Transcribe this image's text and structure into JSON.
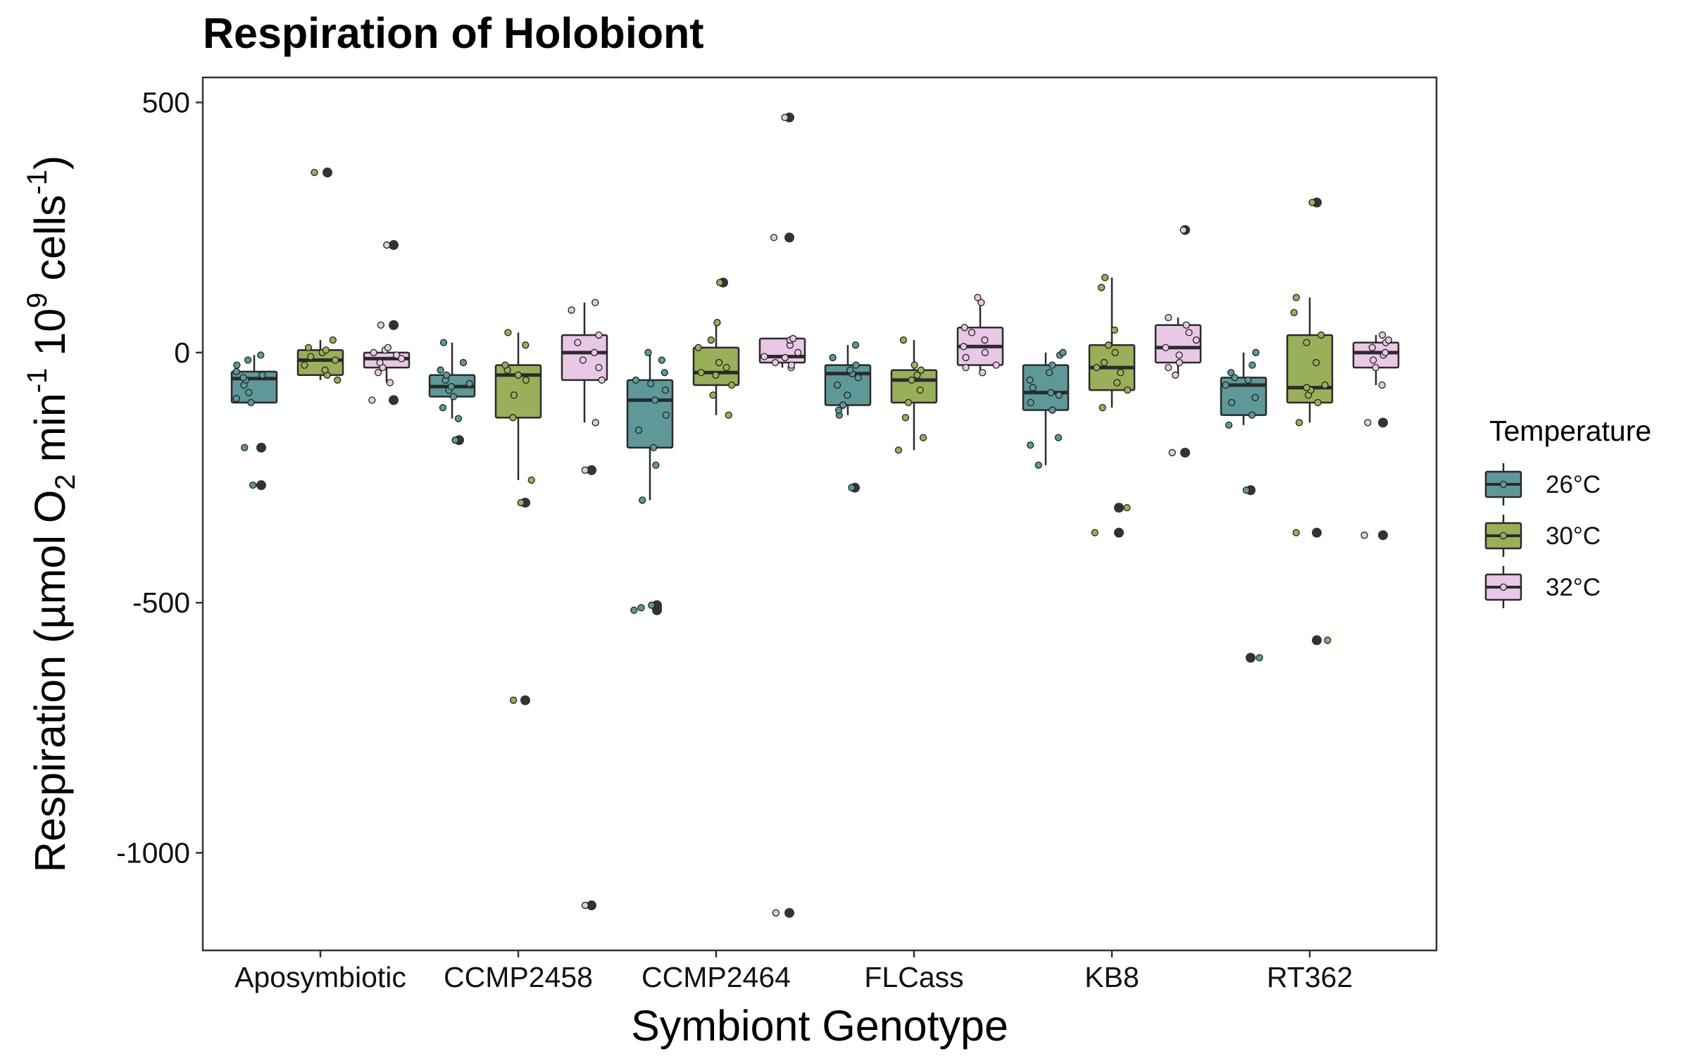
{
  "chart_data": {
    "type": "boxplot",
    "title": "Respiration of Holobiont",
    "xlabel": "Symbiont Genotype",
    "ylabel": {
      "prefix": "Respiration (µmol O",
      "sub": "2",
      "mid1": " min",
      "sup1": "-1",
      "mid2": " 10",
      "sup2": "9",
      "mid3": " cells",
      "sup3": "-1",
      "suffix": ")"
    },
    "ylim": [
      -1195,
      550
    ],
    "yticks": [
      500,
      0,
      -500,
      -1000
    ],
    "ytick_labels": [
      "500",
      "0",
      "-500",
      "-1000"
    ],
    "categories": [
      "Aposymbiotic",
      "CCMP2458",
      "CCMP2464",
      "FLCass",
      "KB8",
      "RT362"
    ],
    "legend": {
      "title": "Temperature",
      "placement": "right",
      "entries": [
        "26°C",
        "30°C",
        "32°C"
      ]
    },
    "colors": {
      "26°C": "#5f9898",
      "30°C": "#9aaf5a",
      "32°C": "#e9c8e6",
      "box_edge": "#2b2b2b",
      "outlier": "#333333"
    },
    "series": [
      {
        "name": "26°C",
        "boxes": [
          {
            "q1": -100,
            "median": -52,
            "q3": -38,
            "whisker_low": -100,
            "whisker_high": -5,
            "outliers": [
              -190,
              -265
            ],
            "points": [
              -100,
              -92,
              -80,
              -65,
              -55,
              -50,
              -45,
              -38,
              -25,
              -15,
              -5,
              -190,
              -265
            ]
          },
          {
            "q1": -88,
            "median": -68,
            "q3": -45,
            "whisker_low": -132,
            "whisker_high": 20,
            "outliers": [
              -175
            ],
            "points": [
              -132,
              -110,
              -88,
              -75,
              -68,
              -62,
              -55,
              -45,
              -35,
              -20,
              20,
              -175
            ]
          },
          {
            "q1": -190,
            "median": -95,
            "q3": -55,
            "whisker_low": -295,
            "whisker_high": 0,
            "outliers": [
              -505,
              -510,
              -515
            ],
            "points": [
              -295,
              -225,
              -190,
              -155,
              -125,
              -95,
              -75,
              -62,
              -55,
              -40,
              -15,
              0,
              -505,
              -510,
              -515
            ]
          },
          {
            "q1": -105,
            "median": -42,
            "q3": -25,
            "whisker_low": -125,
            "whisker_high": 15,
            "outliers": [
              -270
            ],
            "points": [
              -125,
              -115,
              -105,
              -85,
              -65,
              -50,
              -42,
              -35,
              -25,
              -10,
              15,
              -270
            ]
          },
          {
            "q1": -115,
            "median": -80,
            "q3": -25,
            "whisker_low": -225,
            "whisker_high": 0,
            "outliers": [],
            "points": [
              -225,
              -185,
              -170,
              -115,
              -100,
              -85,
              -80,
              -70,
              -55,
              -40,
              -25,
              -5,
              0
            ]
          },
          {
            "q1": -125,
            "median": -65,
            "q3": -50,
            "whisker_low": -145,
            "whisker_high": 0,
            "outliers": [
              -275,
              -610
            ],
            "points": [
              -145,
              -125,
              -100,
              -90,
              -65,
              -55,
              -50,
              -40,
              -25,
              0,
              -275,
              -610
            ]
          }
        ]
      },
      {
        "name": "30°C",
        "boxes": [
          {
            "q1": -45,
            "median": -15,
            "q3": 5,
            "whisker_low": -55,
            "whisker_high": 25,
            "outliers": [
              360
            ],
            "points": [
              -55,
              -45,
              -35,
              -25,
              -15,
              -8,
              0,
              5,
              10,
              25,
              360
            ]
          },
          {
            "q1": -130,
            "median": -45,
            "q3": -25,
            "whisker_low": -255,
            "whisker_high": 40,
            "outliers": [
              -300,
              -695
            ],
            "points": [
              -255,
              -130,
              -85,
              -55,
              -45,
              -35,
              -25,
              15,
              40,
              -300,
              -695
            ]
          },
          {
            "q1": -65,
            "median": -40,
            "q3": 10,
            "whisker_low": -125,
            "whisker_high": 60,
            "outliers": [
              140
            ],
            "points": [
              -125,
              -85,
              -65,
              -45,
              -40,
              -30,
              -20,
              10,
              25,
              60,
              140
            ]
          },
          {
            "q1": -100,
            "median": -55,
            "q3": -35,
            "whisker_low": -195,
            "whisker_high": 25,
            "outliers": [],
            "points": [
              -195,
              -170,
              -130,
              -100,
              -75,
              -55,
              -45,
              -35,
              -25,
              25
            ]
          },
          {
            "q1": -75,
            "median": -30,
            "q3": 15,
            "whisker_low": -110,
            "whisker_high": 150,
            "outliers": [
              -310,
              -360
            ],
            "points": [
              -110,
              -75,
              -60,
              -40,
              -30,
              -20,
              0,
              15,
              45,
              130,
              150,
              -310,
              -360
            ]
          },
          {
            "q1": -100,
            "median": -70,
            "q3": 35,
            "whisker_low": -140,
            "whisker_high": 110,
            "outliers": [
              300,
              -360,
              -575
            ],
            "points": [
              -140,
              -100,
              -85,
              -75,
              -70,
              -65,
              -20,
              20,
              35,
              80,
              110,
              300,
              -360,
              -575
            ]
          }
        ]
      },
      {
        "name": "32°C",
        "boxes": [
          {
            "q1": -30,
            "median": -12,
            "q3": 0,
            "whisker_low": -60,
            "whisker_high": 10,
            "outliers": [
              215,
              55,
              -95
            ],
            "points": [
              -60,
              -40,
              -30,
              -20,
              -12,
              -5,
              0,
              5,
              10,
              215,
              55,
              -95
            ]
          },
          {
            "q1": -55,
            "median": 0,
            "q3": 35,
            "whisker_low": -140,
            "whisker_high": 100,
            "outliers": [
              -235,
              -1105
            ],
            "points": [
              -140,
              -55,
              -30,
              -15,
              0,
              20,
              35,
              85,
              100,
              -235,
              -1105
            ]
          },
          {
            "q1": -20,
            "median": -8,
            "q3": 28,
            "whisker_low": -30,
            "whisker_high": 30,
            "outliers": [
              470,
              230,
              -1120
            ],
            "points": [
              -30,
              -25,
              -20,
              -10,
              -8,
              0,
              15,
              25,
              28,
              470,
              230,
              -1120
            ]
          },
          {
            "q1": -25,
            "median": 12,
            "q3": 50,
            "whisker_low": -40,
            "whisker_high": 110,
            "outliers": [],
            "points": [
              -40,
              -30,
              -25,
              -10,
              0,
              12,
              25,
              40,
              50,
              100,
              110
            ]
          },
          {
            "q1": -20,
            "median": 10,
            "q3": 55,
            "whisker_low": -45,
            "whisker_high": 70,
            "outliers": [
              245,
              -200
            ],
            "points": [
              -45,
              -30,
              -20,
              -5,
              10,
              25,
              40,
              55,
              70,
              245,
              -200
            ]
          },
          {
            "q1": -30,
            "median": 0,
            "q3": 20,
            "whisker_low": -65,
            "whisker_high": 35,
            "outliers": [
              -140,
              -365
            ],
            "points": [
              -65,
              -30,
              -15,
              -5,
              0,
              10,
              20,
              25,
              35,
              -140,
              -365
            ]
          }
        ]
      }
    ]
  }
}
